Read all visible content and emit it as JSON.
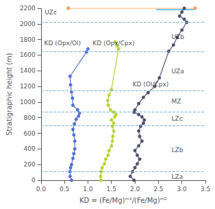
{
  "chart_data": {
    "type": "line",
    "xlabel": "KD = (Fe/Mg)ᵐ¹/(Fe/Mg)ᵐ²",
    "ylabel": "Stratigraphic height (m)",
    "xlim": [
      0,
      3.5
    ],
    "ylim": [
      0,
      2200
    ],
    "xticks": [
      {
        "value": 0,
        "label": "0.0"
      },
      0.5,
      {
        "value": 1.0,
        "label": "1.0"
      },
      1.5,
      {
        "value": 2.0,
        "label": "2.0"
      },
      2.5,
      {
        "value": 3.0,
        "label": "3.0"
      },
      3.5
    ],
    "yticks": [
      0,
      200,
      400,
      600,
      800,
      1000,
      1200,
      1400,
      1600,
      1800,
      2000,
      2200
    ],
    "grid": false,
    "series": [
      {
        "x": [
          0.65,
          0.62,
          0.62,
          0.63,
          0.65,
          0.68,
          0.7,
          0.72,
          0.72,
          0.7,
          0.68,
          0.71,
          0.75,
          0.8,
          0.82,
          0.78,
          0.68,
          0.67,
          0.65,
          0.63,
          0.62,
          0.97,
          1.0
        ],
        "values": [
          0,
          50,
          110,
          160,
          200,
          280,
          340,
          400,
          500,
          580,
          650,
          720,
          780,
          820,
          860,
          900,
          960,
          1050,
          1130,
          1220,
          1330,
          1640,
          1680
        ],
        "marker": "circle",
        "line_style": "solid"
      },
      {
        "x": [
          1.28,
          1.27,
          1.28,
          1.3,
          1.35,
          1.38,
          1.43,
          1.45,
          1.5,
          1.52,
          1.53,
          1.55,
          1.52,
          1.55,
          1.5,
          1.57,
          1.6,
          1.55,
          1.48,
          1.43,
          1.42,
          1.45,
          1.5,
          1.65,
          1.62,
          1.58
        ],
        "values": [
          0,
          50,
          110,
          160,
          210,
          270,
          320,
          380,
          440,
          500,
          560,
          630,
          690,
          730,
          770,
          810,
          840,
          870,
          900,
          960,
          1020,
          1090,
          1160,
          1680,
          1720,
          1770
        ],
        "marker": "circle",
        "line_style": "solid"
      },
      {
        "x": [
          1.98,
          1.9,
          1.95,
          2.0,
          2.05,
          2.1,
          2.05,
          2.0,
          2.08,
          2.15,
          2.1,
          2.08,
          2.12,
          2.18,
          2.2,
          2.15,
          2.08,
          1.98,
          2.0,
          2.08,
          2.18,
          2.28,
          2.42,
          2.52,
          2.72,
          2.82,
          2.9,
          3.0,
          3.1,
          3.05,
          2.95,
          3.0,
          3.05
        ],
        "values": [
          0,
          50,
          110,
          160,
          210,
          270,
          320,
          380,
          440,
          500,
          560,
          630,
          690,
          730,
          770,
          810,
          840,
          870,
          900,
          980,
          1060,
          1120,
          1200,
          1310,
          1650,
          1730,
          1830,
          1920,
          2020,
          2060,
          2100,
          2150,
          2200
        ],
        "marker": "circle",
        "line_style": "solid"
      },
      {
        "x": [
          0.58,
          3.28
        ],
        "values": [
          2200,
          2200
        ],
        "marker": "circle",
        "line_style": "solid"
      },
      {
        "x": [
          2.45,
          3.25
        ],
        "values": [
          2182,
          2182
        ],
        "marker": "none",
        "line_style": "solid"
      }
    ],
    "hlines": {
      "values": [
        110,
        700,
        875,
        1150,
        1650,
        2020
      ],
      "line_style": "dashed"
    },
    "annotations": [
      {
        "label": "UZc",
        "x": 0.08,
        "y": 2145
      },
      {
        "label": "UZb",
        "x": 2.78,
        "y": 1835
      },
      {
        "label": "UZa",
        "x": 2.78,
        "y": 1390
      },
      {
        "label": "MZ",
        "x": 2.78,
        "y": 1010
      },
      {
        "label": "LZc",
        "x": 2.78,
        "y": 788
      },
      {
        "label": "LZb",
        "x": 2.78,
        "y": 388
      },
      {
        "label": "LZa",
        "x": 2.78,
        "y": 45
      },
      {
        "label": "KD (Opx/Ol)",
        "x": 0.07,
        "y": 1755
      },
      {
        "label": "KD (Opx/Cpx)",
        "x": 1.1,
        "y": 1755
      },
      {
        "label": "KD (Ol/Cpx)",
        "x": 1.95,
        "y": 1230
      }
    ]
  }
}
